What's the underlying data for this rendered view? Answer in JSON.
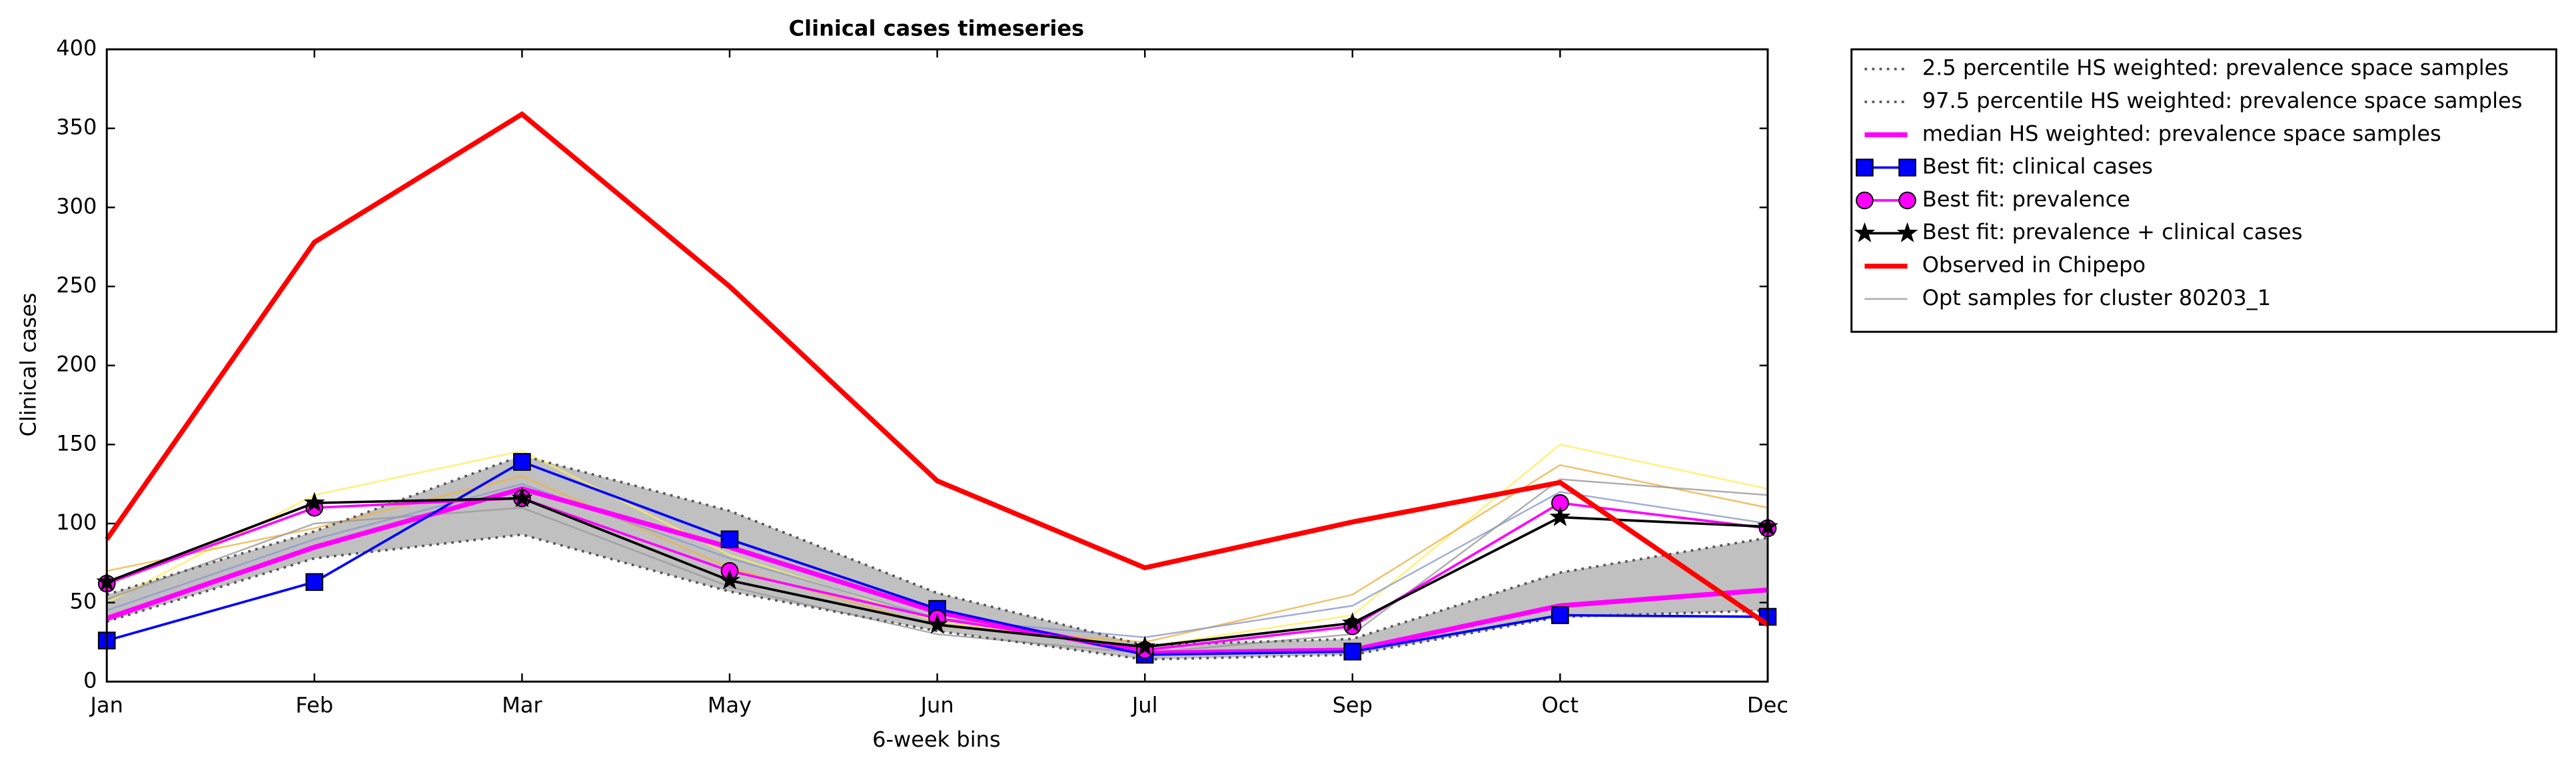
{
  "chart_data": {
    "type": "line",
    "title": "Clinical cases timeseries",
    "xlabel": "6-week bins",
    "ylabel": "Clinical cases",
    "categories": [
      "Jan",
      "Feb",
      "Mar",
      "May",
      "Jun",
      "Jul",
      "Sep",
      "Oct",
      "Dec"
    ],
    "ylim": [
      0,
      400
    ],
    "yticks": [
      0,
      50,
      100,
      150,
      200,
      250,
      300,
      350,
      400
    ],
    "legend": "outside upper right",
    "band_color": "#c0c0c0",
    "series": [
      {
        "name": "2.5 percentile HS weighted: prevalence space samples",
        "color": "#555555",
        "style": "dotted",
        "values": [
          38,
          78,
          93,
          57,
          32,
          14,
          17,
          41,
          45
        ]
      },
      {
        "name": "97.5 percentile HS weighted: prevalence space samples",
        "color": "#555555",
        "style": "dotted",
        "values": [
          55,
          95,
          143,
          108,
          56,
          23,
          27,
          69,
          91
        ]
      },
      {
        "name": "median HS weighted: prevalence space samples",
        "color": "#ff00ff",
        "style": "solid",
        "width": 3,
        "values": [
          40,
          85,
          122,
          85,
          44,
          18,
          20,
          48,
          58
        ]
      },
      {
        "name": "Best fit: clinical cases",
        "color": "#0000ff",
        "style": "solid",
        "marker": "square",
        "values": [
          26,
          63,
          139,
          90,
          46,
          17,
          19,
          42,
          41
        ]
      },
      {
        "name": "Best fit: prevalence",
        "color": "#ff00ff",
        "style": "solid",
        "marker": "circle",
        "values": [
          62,
          110,
          116,
          70,
          40,
          20,
          35,
          113,
          97
        ]
      },
      {
        "name": "Best fit: prevalence + clinical cases",
        "color": "#000000",
        "style": "solid",
        "marker": "star",
        "values": [
          63,
          113,
          116,
          64,
          36,
          22,
          37,
          104,
          98
        ]
      },
      {
        "name": "Observed in Chipepo",
        "color": "#ff0000",
        "style": "solid",
        "width": 3,
        "values": [
          90,
          278,
          359,
          250,
          127,
          72,
          101,
          126,
          36
        ]
      },
      {
        "name": "Opt samples for cluster 80203_1",
        "color": "#aaaaaa",
        "style": "solid",
        "width": 1,
        "samples": [
          [
            50,
            118,
            146,
            80,
            38,
            22,
            42,
            150,
            122
          ],
          [
            70,
            97,
            130,
            72,
            35,
            25,
            55,
            137,
            110
          ],
          [
            45,
            90,
            125,
            78,
            40,
            28,
            48,
            120,
            100
          ],
          [
            52,
            100,
            110,
            60,
            30,
            18,
            30,
            128,
            118
          ]
        ],
        "sample_colors": [
          "#ffee55",
          "#f0b040",
          "#8899cc",
          "#999999"
        ]
      }
    ]
  }
}
